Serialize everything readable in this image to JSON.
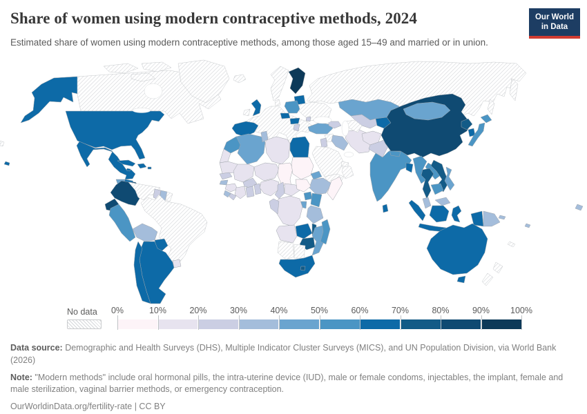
{
  "header": {
    "title": "Share of women using modern contraceptive methods, 2024",
    "subtitle": "Estimated share of women using modern contraceptive methods, among those aged 15–49 and married or in union."
  },
  "logo": {
    "line1": "Our World",
    "line2": "in Data",
    "bg_color": "#1d3d63",
    "accent_color": "#d13c32"
  },
  "legend": {
    "no_data_label": "No data",
    "tick_labels": [
      "0%",
      "10%",
      "20%",
      "30%",
      "40%",
      "50%",
      "60%",
      "70%",
      "80%",
      "90%",
      "100%"
    ]
  },
  "footer": {
    "data_source_label": "Data source:",
    "data_source_text": " Demographic and Health Surveys (DHS), Multiple Indicator Cluster Surveys (MICS), and UN Population Division, via World Bank (2026)",
    "note_label": "Note:",
    "note_text": " \"Modern methods\" include oral hormonal pills, the intra-uterine device (IUD), male or female condoms, injectables, the implant, female and male sterilization, vaginal barrier methods, or emergency contraception.",
    "url_text": "OurWorldinData.org/fertility-rate",
    "separator": " | ",
    "license_text": "CC BY"
  },
  "chart_data": {
    "type": "choropleth_map",
    "title": "Share of women using modern contraceptive methods, 2024",
    "unit": "%",
    "bin_edges": [
      0,
      10,
      20,
      30,
      40,
      50,
      60,
      70,
      80,
      90,
      100
    ],
    "bin_colors": [
      "#fdf4f8",
      "#e7e3ef",
      "#cbcee3",
      "#a4bddb",
      "#6aa4cf",
      "#4b95c4",
      "#0d6aa7",
      "#135b87",
      "#0f4a72",
      "#0d3a59"
    ],
    "no_data_style": "diagonal-hatch",
    "legend_position": "bottom",
    "regions": {
      "alaska": 6,
      "canada": -1,
      "arctic1": -1,
      "arctic2": -1,
      "arctic3": -1,
      "greenland": -1,
      "iceland": -1,
      "usa": 6,
      "hawaii": 6,
      "mexico": 6,
      "guatemala": 4,
      "honduras_nicaragua": 6,
      "costa_rica_panama": 6,
      "cuba": 6,
      "hispaniola": 6,
      "jamaica": 6,
      "puerto_rico": 6,
      "colombia": 8,
      "venezuela": -1,
      "guyana": 2,
      "suriname": 3,
      "french_guiana": -1,
      "ecuador": 8,
      "peru": 5,
      "brazil": -1,
      "bolivia": 3,
      "paraguay": 6,
      "uruguay": 1,
      "argentina": 6,
      "chile": 6,
      "uk": 6,
      "ireland": -1,
      "norway_sweden": -1,
      "finland": 9,
      "baltics": 6,
      "denmark": -1,
      "europe_west": -1,
      "ukraine_belarus": -1,
      "poland": 5,
      "czechia": 6,
      "hungary": 6,
      "serbia": 2,
      "moldova": 2,
      "spain_portugal": 6,
      "russia": -1,
      "kamchatka": -1,
      "sakhalin": -1,
      "turkey": 4,
      "georgia_azerbaijan": 2,
      "syria": -1,
      "israel_jordan": 2,
      "iraq": 3,
      "iran": 1,
      "turkmenistan": -1,
      "uzbekistan": 2,
      "kyrgyzstan_tajikistan": 6,
      "kazakhstan": 4,
      "afghanistan": 1,
      "pakistan": 2,
      "india": 5,
      "nepal": 5,
      "bangladesh": 6,
      "sri_lanka": 6,
      "china": 8,
      "mongolia": 4,
      "north_korea": 7,
      "south_korea": 6,
      "japan_hokkaido": 5,
      "japan_honshu": 5,
      "myanmar": 5,
      "thailand": 7,
      "laos": 5,
      "vietnam": 7,
      "cambodia": 5,
      "malaysia_peninsula": 3,
      "malaysia_borneo": 3,
      "sumatra": 6,
      "java": 6,
      "kalimantan": 6,
      "sulawesi": 6,
      "papua_indonesia": 6,
      "papua_new_guinea": 3,
      "new_britain": 3,
      "philippines": 4,
      "timor_leste": 4,
      "australia": 6,
      "tasmania": 6,
      "new_zealand_north": -1,
      "new_zealand_south": -1,
      "new_caledonia": -1,
      "fiji": 3,
      "morocco": 5,
      "western_sahara": 1,
      "algeria": 4,
      "tunisia": 3,
      "libya": 1,
      "egypt": 6,
      "mauritania": 1,
      "senegal": 2,
      "mali": 1,
      "burkina_faso": 2,
      "niger": 1,
      "chad": 0,
      "sudan": 0,
      "eritrea": 4,
      "ethiopia": 3,
      "somalia": 0,
      "guinea_bissau": 3,
      "guinea": 1,
      "sierra_leone": 3,
      "liberia": 2,
      "cote_divoire": 1,
      "ghana": 2,
      "togo_benin": 2,
      "nigeria": 1,
      "cameroon": 2,
      "central_african_republic": 1,
      "south_sudan": 0,
      "uganda": 5,
      "kenya": 5,
      "rwanda_burundi": 4,
      "drc": 1,
      "gabon_congo": 2,
      "tanzania": 3,
      "angola": 1,
      "zambia": 6,
      "malawi": 7,
      "mozambique": 4,
      "zimbabwe": 7,
      "namibia": -1,
      "botswana": -1,
      "south_africa": 6,
      "lesotho": 7,
      "madagascar": 5,
      "left_fragment": -1,
      "right_fragment": 3
    }
  }
}
